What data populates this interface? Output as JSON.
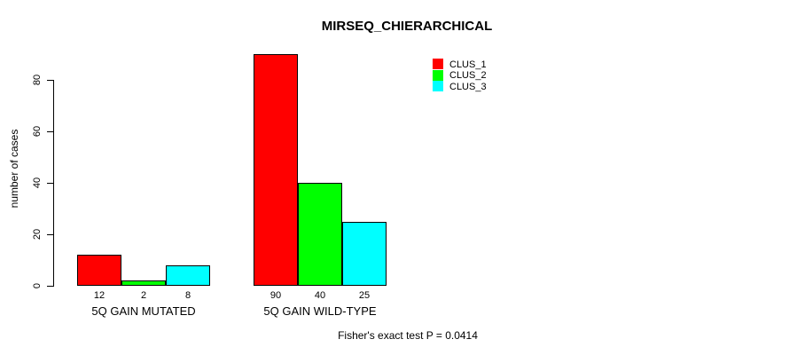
{
  "chart_data": {
    "type": "bar",
    "title": "MIRSEQ_CHIERARCHICAL",
    "xlabel": "",
    "ylabel": "number of cases",
    "ylim": [
      0,
      80
    ],
    "yticks": [
      0,
      20,
      40,
      60,
      80
    ],
    "grid": false,
    "legend_position": "top-right",
    "categories": [
      "5Q GAIN MUTATED",
      "5Q GAIN WILD-TYPE"
    ],
    "series": [
      {
        "name": "CLUS_1",
        "color": "#FF0000",
        "values": [
          12,
          90
        ]
      },
      {
        "name": "CLUS_2",
        "color": "#00FF00",
        "values": [
          2,
          40
        ]
      },
      {
        "name": "CLUS_3",
        "color": "#00FFFF",
        "values": [
          8,
          25
        ]
      }
    ],
    "bar_value_labels": [
      [
        "12",
        "2",
        "8"
      ],
      [
        "90",
        "40",
        "25"
      ]
    ],
    "annotation": "Fisher's exact test P = 0.0414"
  },
  "colors": {
    "axis": "#000000",
    "background": "#FFFFFF",
    "text": "#000000"
  }
}
